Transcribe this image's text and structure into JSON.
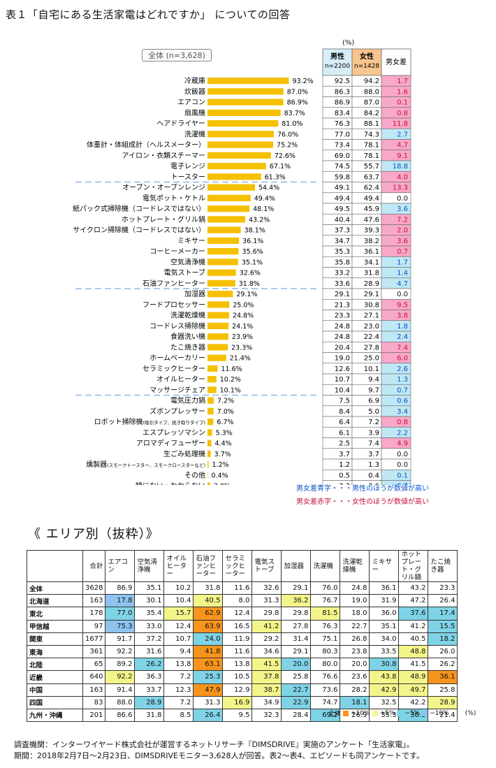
{
  "title": "表１「自宅にある生活家電はどれですか」 についての回答",
  "chart_data": {
    "type": "bar",
    "pct_unit": "(%)",
    "total_label": "全体 (n=3,628)",
    "table_headers": {
      "male": "男性",
      "male_n": "n=2200",
      "female": "女性",
      "female_n": "n=1428",
      "diff": "男女差"
    },
    "categories": [
      "冷蔵庫",
      "炊飯器",
      "エアコン",
      "扇風機",
      "ヘアドライヤー",
      "洗濯機",
      "体重計・体組成計（ヘルスメーター）",
      "アイロン・衣類スチーマー",
      "電子レンジ",
      "トースター",
      "オーブン・オーブンレンジ",
      "電気ポット・ケトル",
      "紙パック式掃除機（コードレスではない）",
      "ホットプレート・グリル鍋",
      "サイクロン掃除機（コードレスではない）",
      "ミキサー",
      "コーヒーメーカー",
      "空気清浄機",
      "電気ストーブ",
      "石油ファンヒーター",
      "加湿器",
      "フードプロセッサー",
      "洗濯乾燥機",
      "コードレス掃除機",
      "食器洗い機",
      "たこ焼き器",
      "ホームベーカリー",
      "セラミックヒーター",
      "オイルヒーター",
      "マッサージチェア",
      "電気圧力鍋",
      "ズボンプレッサー",
      "ロボット掃除機",
      "エスプレッソマシン",
      "アロマディフューザー",
      "生ごみ処理機",
      "燻製器",
      "その他",
      "特にない・わからない"
    ],
    "sublabels": {
      "32": "(吸引タイプ、拭き取りタイプ)",
      "36": "(スモークトースター、スモークロースターなど)"
    },
    "values": [
      93.2,
      87.0,
      86.9,
      83.7,
      81.0,
      76.0,
      75.2,
      72.6,
      67.1,
      61.3,
      54.4,
      49.4,
      48.1,
      43.2,
      38.1,
      36.1,
      35.6,
      35.1,
      32.6,
      31.8,
      29.1,
      25.0,
      24.8,
      24.1,
      23.9,
      23.3,
      21.4,
      11.6,
      10.2,
      10.1,
      7.2,
      7.0,
      6.7,
      5.3,
      4.4,
      3.7,
      1.2,
      0.4,
      3.0
    ],
    "male": [
      92.5,
      86.3,
      86.9,
      83.4,
      76.3,
      77.0,
      73.4,
      69.0,
      74.5,
      59.8,
      49.1,
      49.4,
      49.5,
      40.4,
      37.3,
      34.7,
      35.3,
      35.8,
      33.2,
      33.6,
      29.1,
      21.3,
      23.3,
      24.8,
      24.8,
      20.4,
      19.0,
      12.6,
      10.7,
      10.4,
      7.5,
      8.4,
      6.4,
      6.1,
      2.5,
      3.7,
      1.2,
      0.5,
      3.3
    ],
    "female": [
      94.2,
      88.0,
      87.0,
      84.2,
      88.1,
      74.3,
      78.1,
      78.1,
      55.7,
      63.7,
      62.4,
      49.4,
      45.9,
      47.6,
      39.3,
      38.2,
      36.1,
      34.1,
      31.8,
      28.9,
      29.1,
      30.8,
      27.1,
      23.0,
      22.4,
      27.8,
      25.0,
      10.1,
      9.4,
      9.7,
      6.9,
      5.0,
      7.2,
      3.9,
      7.4,
      3.7,
      1.3,
      0.4,
      2.6
    ],
    "diff": [
      "1.7",
      "1.6",
      "0.1",
      "0.8",
      "11.8",
      "2.7",
      "4.7",
      "9.1",
      "18.8",
      "4.0",
      "13.3",
      "0.0",
      "3.6",
      "7.2",
      "2.0",
      "3.6",
      "0.7",
      "1.7",
      "1.4",
      "4.7",
      "0.0",
      "9.5",
      "3.8",
      "1.8",
      "2.4",
      "7.4",
      "6.0",
      "2.6",
      "1.3",
      "0.7",
      "0.6",
      "3.4",
      "0.8",
      "2.2",
      "4.9",
      "0.0",
      "0.0",
      "0.1",
      "0.7"
    ],
    "diff_sign": [
      "f",
      "f",
      "f",
      "f",
      "f",
      "m",
      "f",
      "f",
      "m",
      "f",
      "f",
      "n",
      "m",
      "f",
      "f",
      "f",
      "f",
      "m",
      "m",
      "m",
      "n",
      "f",
      "f",
      "m",
      "m",
      "f",
      "f",
      "m",
      "m",
      "m",
      "m",
      "m",
      "f",
      "m",
      "f",
      "n",
      "n",
      "m",
      "m"
    ],
    "group_breaks_after": [
      9,
      19,
      29
    ],
    "xlim": [
      0,
      100
    ]
  },
  "notes": {
    "blue": "男女差青字・・・男性のほうが数値が高い",
    "red": "男女差赤字・・・女性のほうが数値が高い"
  },
  "colors": {
    "bar": "#f5c000",
    "male_header": "#d7eef8",
    "female_header": "#f9c58e",
    "pink": "#f8a8c8",
    "lightblue": "#bfe8f4",
    "orange": "#f7941d",
    "yellow": "#f3f58a",
    "blue": "#8ec3f0",
    "cyan": "#7fd3e6",
    "blue_text": "#0b4fc7",
    "red_text": "#c8103a"
  },
  "area_title": "《 エリア別（抜粋）》",
  "area_table": {
    "headers": [
      "",
      "合計",
      "エアコン",
      "空気清浄機",
      "オイルヒーター",
      "石油ファンヒーター",
      "セラミックヒーター",
      "電気ストーブ",
      "加湿器",
      "洗濯機",
      "洗濯乾燥機",
      "ミキサー",
      "ホットプレート・グリル鍋",
      "たこ焼き器"
    ],
    "rows": [
      {
        "label": "全体",
        "values": [
          "3628",
          "86.9",
          "35.1",
          "10.2",
          "31.8",
          "11.6",
          "32.6",
          "29.1",
          "76.0",
          "24.8",
          "36.1",
          "43.2",
          "23.3"
        ],
        "marks": [
          "",
          "",
          "",
          "",
          "",
          "",
          "",
          "",
          "",
          "",
          "",
          "",
          ""
        ]
      },
      {
        "label": "北海道",
        "values": [
          "163",
          "17.8",
          "30.1",
          "10.4",
          "40.5",
          "8.0",
          "31.3",
          "36.2",
          "76.7",
          "19.0",
          "31.9",
          "47.2",
          "26.4"
        ],
        "marks": [
          "",
          "b",
          "",
          "",
          "y",
          "",
          "",
          "y",
          "",
          "",
          "",
          "",
          ""
        ]
      },
      {
        "label": "東北",
        "values": [
          "178",
          "77.0",
          "35.4",
          "15.7",
          "62.9",
          "12.4",
          "29.8",
          "29.8",
          "81.5",
          "18.0",
          "36.0",
          "37.6",
          "17.4"
        ],
        "marks": [
          "",
          "c",
          "",
          "y",
          "o",
          "",
          "",
          "",
          "y",
          "",
          "",
          "c",
          "c"
        ]
      },
      {
        "label": "甲信越",
        "values": [
          "97",
          "75.3",
          "33.0",
          "12.4",
          "63.9",
          "16.5",
          "41.2",
          "27.8",
          "76.3",
          "22.7",
          "35.1",
          "41.2",
          "15.5"
        ],
        "marks": [
          "",
          "b",
          "",
          "",
          "o",
          "",
          "y",
          "",
          "",
          "",
          "",
          "",
          "c"
        ]
      },
      {
        "label": "関東",
        "values": [
          "1677",
          "91.7",
          "37.2",
          "10.7",
          "24.0",
          "11.9",
          "29.2",
          "31.4",
          "75.1",
          "26.8",
          "34.0",
          "40.5",
          "18.2"
        ],
        "marks": [
          "",
          "",
          "",
          "",
          "c",
          "",
          "",
          "",
          "",
          "",
          "",
          "",
          "c"
        ]
      },
      {
        "label": "東海",
        "values": [
          "361",
          "92.2",
          "31.6",
          "9.4",
          "41.8",
          "11.6",
          "34.6",
          "29.1",
          "80.3",
          "23.8",
          "33.5",
          "48.8",
          "26.0"
        ],
        "marks": [
          "",
          "",
          "",
          "",
          "o",
          "",
          "",
          "",
          "",
          "",
          "",
          "y",
          ""
        ]
      },
      {
        "label": "北陸",
        "values": [
          "65",
          "89.2",
          "26.2",
          "13.8",
          "63.1",
          "13.8",
          "41.5",
          "20.0",
          "80.0",
          "20.0",
          "30.8",
          "41.5",
          "26.2"
        ],
        "marks": [
          "",
          "",
          "c",
          "",
          "o",
          "",
          "y",
          "c",
          "",
          "",
          "c",
          "",
          ""
        ]
      },
      {
        "label": "近畿",
        "values": [
          "640",
          "92.2",
          "36.3",
          "7.2",
          "25.3",
          "10.5",
          "37.8",
          "25.8",
          "76.6",
          "23.6",
          "43.8",
          "48.9",
          "36.1"
        ],
        "marks": [
          "",
          "y",
          "",
          "",
          "c",
          "",
          "y",
          "",
          "",
          "",
          "y",
          "y",
          "o"
        ]
      },
      {
        "label": "中国",
        "values": [
          "163",
          "91.4",
          "33.7",
          "12.3",
          "47.9",
          "12.9",
          "38.7",
          "22.7",
          "73.6",
          "28.2",
          "42.9",
          "49.7",
          "25.8"
        ],
        "marks": [
          "",
          "",
          "",
          "",
          "o",
          "",
          "y",
          "c",
          "",
          "",
          "y",
          "y",
          ""
        ]
      },
      {
        "label": "四国",
        "values": [
          "83",
          "88.0",
          "28.9",
          "7.2",
          "31.3",
          "16.9",
          "34.9",
          "22.9",
          "74.7",
          "18.1",
          "32.5",
          "42.2",
          "28.9"
        ],
        "marks": [
          "",
          "",
          "c",
          "",
          "",
          "y",
          "",
          "c",
          "",
          "c",
          "",
          "",
          "y"
        ]
      },
      {
        "label": "九州・沖縄",
        "values": [
          "201",
          "86.6",
          "31.8",
          "8.5",
          "26.4",
          "9.5",
          "32.3",
          "28.4",
          "69.2",
          "26.9",
          "35.3",
          "36.8",
          "21.4"
        ],
        "marks": [
          "",
          "",
          "",
          "",
          "c",
          "",
          "",
          "",
          "c",
          "",
          "",
          "c",
          ""
        ]
      }
    ],
    "legend": [
      "全体",
      "■+10%",
      "■+5%",
      "■−5%",
      "■−10%",
      "(%)"
    ]
  },
  "footer": {
    "line1": "調査機関：インターワイヤード株式会社が運営するネットリサーチ『DIMSDRIVE』実施のアンケート「生活家電」。",
    "line2": "期間：2018年2月7日～2月23日、DIMSDRIVEモニター3,628人が回答。表2～表4、エピソードも同アンケートです。"
  }
}
